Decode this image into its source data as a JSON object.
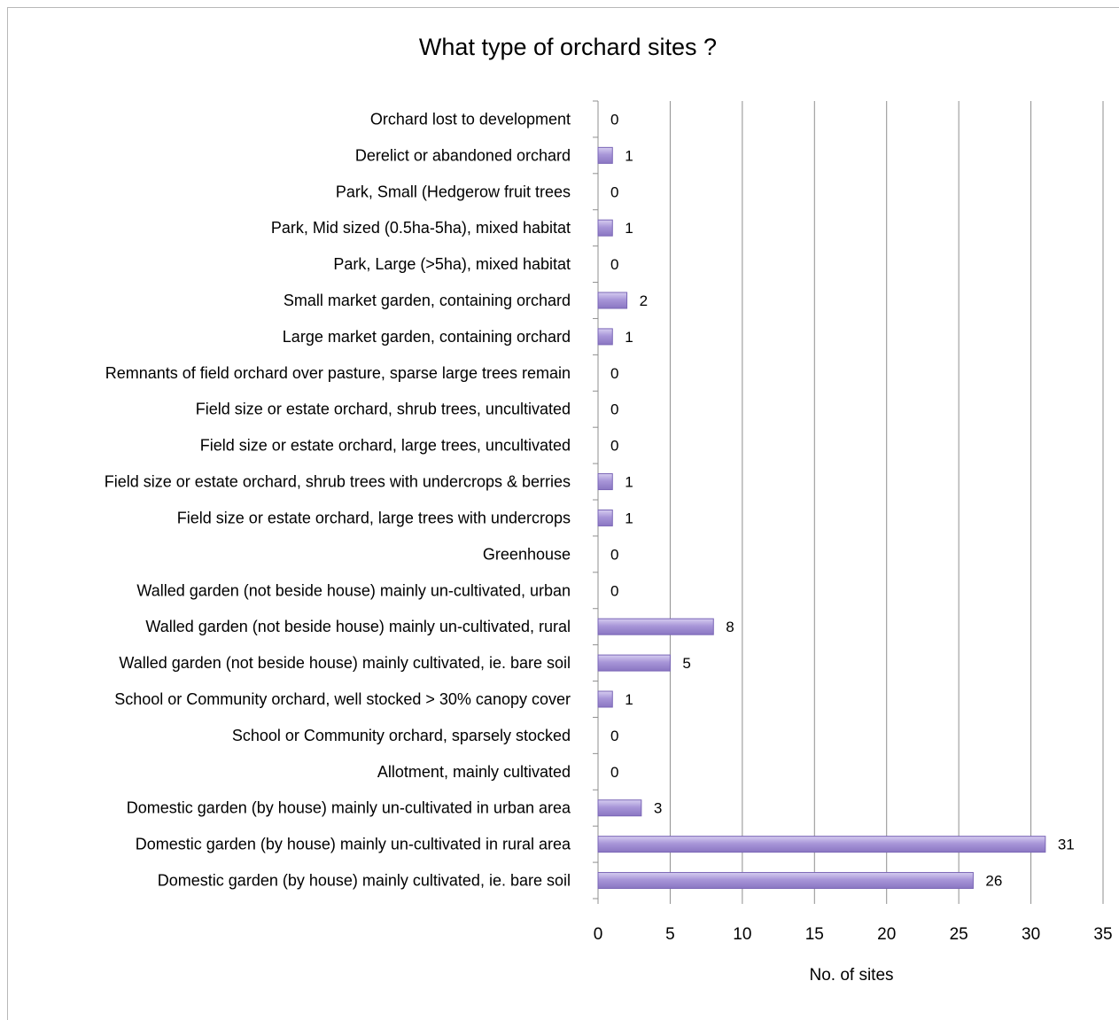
{
  "chart_data": {
    "type": "bar",
    "orientation": "horizontal",
    "title": "What type of orchard sites ?",
    "xlabel": "No. of sites",
    "ylabel": "",
    "xlim": [
      0,
      35
    ],
    "xticks": [
      0,
      5,
      10,
      15,
      20,
      25,
      30,
      35
    ],
    "grid": true,
    "legend": "none",
    "bar_color": "#a896d8",
    "categories": [
      "Orchard lost to development",
      "Derelict or abandoned orchard",
      "Park, Small (Hedgerow fruit trees",
      "Park, Mid sized (0.5ha-5ha), mixed habitat",
      "Park, Large (>5ha), mixed habitat",
      "Small market garden, containing orchard",
      "Large market garden, containing orchard",
      "Remnants of field orchard over pasture, sparse large trees remain",
      "Field size or estate orchard, shrub trees, uncultivated",
      "Field size or estate orchard, large trees, uncultivated",
      "Field size or estate orchard, shrub trees with undercrops & berries",
      "Field size or estate orchard, large trees with undercrops",
      "Greenhouse",
      "Walled garden (not beside house) mainly un-cultivated, urban",
      "Walled garden (not beside house) mainly un-cultivated, rural",
      "Walled garden (not beside house) mainly cultivated, ie. bare soil",
      "School or Community orchard, well stocked > 30% canopy cover",
      "School or Community orchard, sparsely stocked",
      "Allotment, mainly cultivated",
      "Domestic garden (by house) mainly un-cultivated in urban area",
      "Domestic garden (by house) mainly un-cultivated in rural area",
      "Domestic garden (by house) mainly cultivated, ie. bare soil"
    ],
    "values": [
      0,
      1,
      0,
      1,
      0,
      2,
      1,
      0,
      0,
      0,
      1,
      1,
      0,
      0,
      8,
      5,
      1,
      0,
      0,
      3,
      31,
      26
    ]
  }
}
